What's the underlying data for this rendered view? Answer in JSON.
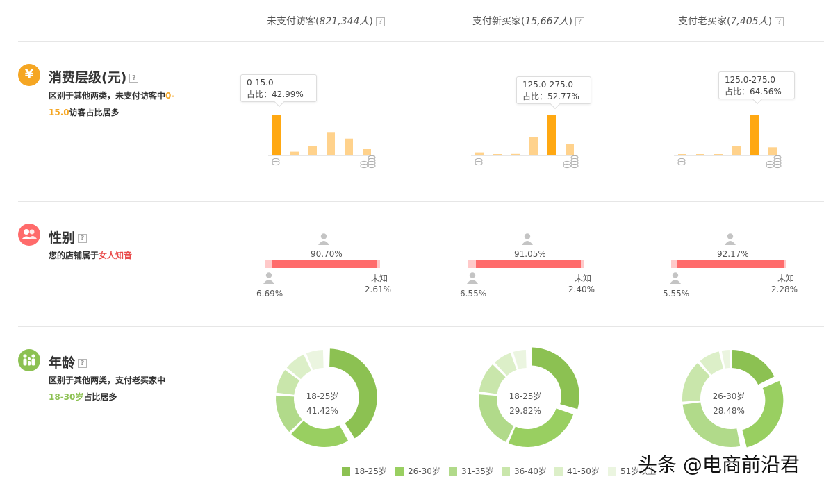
{
  "columns": [
    {
      "name": "未支付访客",
      "count": "821,344人"
    },
    {
      "name": "支付新买家",
      "count": "15,667人"
    },
    {
      "name": "支付老买家",
      "count": "7,405人"
    }
  ],
  "help_mark": "?",
  "sections": {
    "spend": {
      "title": "消费层级(元)",
      "icon_glyph": "¥",
      "desc_before": "区别于其他两类，未支付访客中",
      "desc_highlight": "0-15.0",
      "desc_after": "访客占比居多",
      "tooltips": [
        {
          "range": "0-15.0",
          "ratio": "占比：42.99%"
        },
        {
          "range": "125.0-275.0",
          "ratio": "占比：52.77%"
        },
        {
          "range": "125.0-275.0",
          "ratio": "占比：64.56%"
        }
      ]
    },
    "gender": {
      "title": "性别",
      "desc_before": "您的店铺属于",
      "desc_highlight": "女人知音",
      "unknown_label": "未知",
      "groups": [
        {
          "female": "90.70%",
          "male": "6.69%",
          "unknown": "2.61%"
        },
        {
          "female": "91.05%",
          "male": "6.55%",
          "unknown": "2.40%"
        },
        {
          "female": "92.17%",
          "male": "5.55%",
          "unknown": "2.28%"
        }
      ]
    },
    "age": {
      "title": "年龄",
      "desc_before": "区别于其他两类，支付老买家中",
      "desc_highlight": "18-30岁",
      "desc_after": "占比居多",
      "centers": [
        {
          "label": "18-25岁",
          "value": "41.42%"
        },
        {
          "label": "18-25岁",
          "value": "29.82%"
        },
        {
          "label": "26-30岁",
          "value": "28.48%"
        }
      ]
    }
  },
  "legend": [
    "18-25岁",
    "26-30岁",
    "31-35岁",
    "36-40岁",
    "41-50岁",
    "51岁以上"
  ],
  "watermark": "头条 @电商前沿君",
  "colors": {
    "orange": "#ffa812",
    "orange_light": "#ffd28c",
    "red": "#ff6b6b",
    "red_light": "#ffc9c9",
    "green_shades": [
      "#8cc152",
      "#99cf61",
      "#b1da8a",
      "#c9e6ab",
      "#dcefc8",
      "#ebf5e0"
    ],
    "icon_spend": "#f5a623",
    "icon_gender": "#ff6b6b",
    "icon_age": "#8cc152"
  },
  "chart_data": [
    {
      "type": "bar",
      "title": "消费层级(元) - 未支付访客",
      "values": [
        42.99,
        4,
        10,
        25,
        18,
        7
      ],
      "highlight_index": 0,
      "unit": "%"
    },
    {
      "type": "bar",
      "title": "消费层级(元) - 支付新买家",
      "values": [
        4,
        1,
        2,
        24,
        52.77,
        15
      ],
      "highlight_index": 4,
      "unit": "%"
    },
    {
      "type": "bar",
      "title": "消费层级(元) - 支付老买家",
      "values": [
        2,
        1,
        1,
        15,
        64.56,
        13
      ],
      "highlight_index": 4,
      "unit": "%"
    },
    {
      "type": "pie",
      "title": "年龄 - 未支付访客",
      "categories": [
        "18-25岁",
        "26-30岁",
        "31-35岁",
        "36-40岁",
        "41-50岁",
        "51岁以上"
      ],
      "values": [
        41.42,
        21,
        14,
        9,
        8,
        6.58
      ]
    },
    {
      "type": "pie",
      "title": "年龄 - 支付新买家",
      "categories": [
        "18-25岁",
        "26-30岁",
        "31-35岁",
        "36-40岁",
        "41-50岁",
        "51岁以上"
      ],
      "values": [
        29.82,
        27,
        20,
        11,
        7,
        5.18
      ]
    },
    {
      "type": "pie",
      "title": "年龄 - 支付老买家",
      "categories": [
        "18-25岁",
        "26-30岁",
        "31-35岁",
        "36-40岁",
        "41-50岁",
        "51岁以上"
      ],
      "values": [
        18,
        28.48,
        27,
        15,
        8,
        3.52
      ]
    }
  ]
}
